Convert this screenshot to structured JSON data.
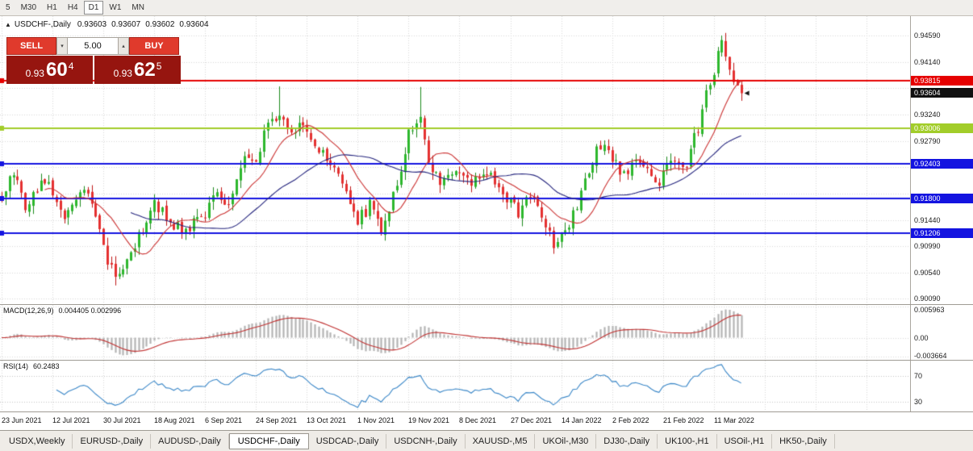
{
  "toolbar": {
    "timeframes": [
      {
        "label": "5",
        "active": false
      },
      {
        "label": "M30",
        "active": false
      },
      {
        "label": "H1",
        "active": false
      },
      {
        "label": "H4",
        "active": false
      },
      {
        "label": "D1",
        "active": true
      },
      {
        "label": "W1",
        "active": false
      },
      {
        "label": "MN",
        "active": false
      }
    ]
  },
  "chart_header": {
    "collapse_icon": "▲",
    "symbol": "USDCHF-,Daily",
    "open": "0.93603",
    "high": "0.93607",
    "low": "0.93602",
    "close": "0.93604"
  },
  "trade_panel": {
    "sell_label": "SELL",
    "buy_label": "BUY",
    "lot_value": "5.00",
    "sell_price": {
      "prefix": "0.93",
      "big": "60",
      "sup": "4"
    },
    "buy_price": {
      "prefix": "0.93",
      "big": "62",
      "sup": "5"
    }
  },
  "main_chart": {
    "y_range": {
      "top": 0.9492,
      "bottom": 0.9
    },
    "grid": {
      "base": 0.9009,
      "step": 0.0045,
      "count": 11
    },
    "grid_labels": [
      "0.94590",
      "0.94140",
      "0.93240",
      "0.92790",
      "0.91440",
      "0.90990",
      "0.90540",
      "0.90090"
    ],
    "badges": [
      {
        "text": "0.93815",
        "bg": "#e60000",
        "name": "price-badge-resistance-line"
      },
      {
        "text": "0.93604",
        "bg": "#111111",
        "name": "price-badge-current-price"
      },
      {
        "text": "0.93006",
        "bg": "#a2cd2a",
        "name": "price-badge-green-line"
      },
      {
        "text": "0.92403",
        "bg": "#1414e0",
        "name": "price-badge-blue-line-1"
      },
      {
        "text": "0.91800",
        "bg": "#1414e0",
        "name": "price-badge-blue-line-2"
      },
      {
        "text": "0.91206",
        "bg": "#1414e0",
        "name": "price-badge-blue-line-3"
      }
    ],
    "hlines": [
      {
        "price": 0.93815,
        "color": "#e60000",
        "width": 2
      },
      {
        "price": 0.93006,
        "color": "#a2cd2a",
        "width": 2
      },
      {
        "price": 0.92403,
        "color": "#1414e0",
        "width": 2
      },
      {
        "price": 0.918,
        "color": "#1414e0",
        "width": 2
      },
      {
        "price": 0.91206,
        "color": "#1414e0",
        "width": 2
      }
    ],
    "ma": [
      {
        "period": 12,
        "color": "#cc3333"
      },
      {
        "period": 34,
        "color": "#23237d"
      }
    ],
    "candle_colors": {
      "bull_fill": "#2db82d",
      "bull_stroke": "#1d8a1d",
      "bear_fill": "#e53030",
      "bear_stroke": "#c01616"
    }
  },
  "chart_data": {
    "type": "candlestick",
    "symbol": "USDCHF",
    "timeframe": "Daily",
    "candle_count": 190,
    "y_visible_range": [
      0.9,
      0.9492
    ],
    "x_labels": [
      "23 Jun 2021",
      "12 Jul 2021",
      "30 Jul 2021",
      "18 Aug 2021",
      "6 Sep 2021",
      "24 Sep 2021",
      "13 Oct 2021",
      "1 Nov 2021",
      "19 Nov 2021",
      "8 Dec 2021",
      "27 Dec 2021",
      "14 Jan 2022",
      "2 Feb 2022",
      "21 Feb 2022",
      "11 Mar 2022"
    ],
    "close_anchors": [
      [
        0,
        0.9185
      ],
      [
        3,
        0.9222
      ],
      [
        6,
        0.9168
      ],
      [
        10,
        0.9212
      ],
      [
        13,
        0.9196
      ],
      [
        16,
        0.915
      ],
      [
        20,
        0.9202
      ],
      [
        23,
        0.9172
      ],
      [
        26,
        0.9092
      ],
      [
        29,
        0.9045
      ],
      [
        32,
        0.907
      ],
      [
        35,
        0.9118
      ],
      [
        39,
        0.9172
      ],
      [
        43,
        0.914
      ],
      [
        47,
        0.9128
      ],
      [
        52,
        0.915
      ],
      [
        55,
        0.9198
      ],
      [
        58,
        0.917
      ],
      [
        62,
        0.9258
      ],
      [
        65,
        0.9252
      ],
      [
        68,
        0.9305
      ],
      [
        71,
        0.9332
      ],
      [
        74,
        0.9288
      ],
      [
        77,
        0.9316
      ],
      [
        80,
        0.9272
      ],
      [
        84,
        0.9238
      ],
      [
        88,
        0.9192
      ],
      [
        91,
        0.9142
      ],
      [
        94,
        0.9168
      ],
      [
        97,
        0.9128
      ],
      [
        101,
        0.9208
      ],
      [
        104,
        0.9288
      ],
      [
        107,
        0.933
      ],
      [
        109,
        0.9245
      ],
      [
        112,
        0.9208
      ],
      [
        116,
        0.9235
      ],
      [
        120,
        0.9206
      ],
      [
        124,
        0.9232
      ],
      [
        128,
        0.9188
      ],
      [
        132,
        0.9158
      ],
      [
        135,
        0.9188
      ],
      [
        138,
        0.9142
      ],
      [
        141,
        0.9105
      ],
      [
        144,
        0.9128
      ],
      [
        147,
        0.9162
      ],
      [
        150,
        0.9232
      ],
      [
        153,
        0.9275
      ],
      [
        156,
        0.9248
      ],
      [
        159,
        0.9218
      ],
      [
        162,
        0.9256
      ],
      [
        165,
        0.9228
      ],
      [
        168,
        0.9212
      ],
      [
        171,
        0.9252
      ],
      [
        174,
        0.9225
      ],
      [
        176,
        0.9262
      ],
      [
        178,
        0.9302
      ],
      [
        180,
        0.9355
      ],
      [
        182,
        0.9402
      ],
      [
        184,
        0.9448
      ],
      [
        186,
        0.9398
      ],
      [
        188,
        0.9368
      ],
      [
        189,
        0.93604
      ]
    ],
    "spikes": [
      [
        29,
        0.906,
        0.9032
      ],
      [
        71,
        0.9372,
        null
      ],
      [
        107,
        0.9371,
        null
      ],
      [
        141,
        0.9118,
        0.9086
      ],
      [
        183,
        0.9438,
        null
      ],
      [
        184,
        0.9459,
        null
      ]
    ]
  },
  "macd_panel": {
    "label": "MACD(12,26,9)",
    "values": "0.004405 0.002996",
    "params": {
      "fast": 12,
      "slow": 26,
      "signal": 9
    },
    "axis_labels": [
      {
        "text": "0.005963",
        "value": 0.005963
      },
      {
        "text": "0.00",
        "value": 0
      },
      {
        "text": "-0.003664",
        "value": -0.003664
      }
    ],
    "histogram_color": "#b4b4b4",
    "signal_color": "#c03030"
  },
  "rsi_panel": {
    "label": "RSI(14)",
    "value": "60.2483",
    "period": 14,
    "levels": [
      {
        "text": "70",
        "value": 70
      },
      {
        "text": "30",
        "value": 30
      }
    ],
    "line_color": "#3a87c8"
  },
  "bottom_tabs": {
    "active_index": 3,
    "tabs": [
      "USDX,Weekly",
      "EURUSD-,Daily",
      "AUDUSD-,Daily",
      "USDCHF-,Daily",
      "USDCAD-,Daily",
      "USDCNH-,Daily",
      "XAUUSD-,M5",
      "UKOil-,M30",
      "DJ30-,Daily",
      "UK100-,H1",
      "USOil-,H1",
      "HK50-,Daily"
    ]
  }
}
